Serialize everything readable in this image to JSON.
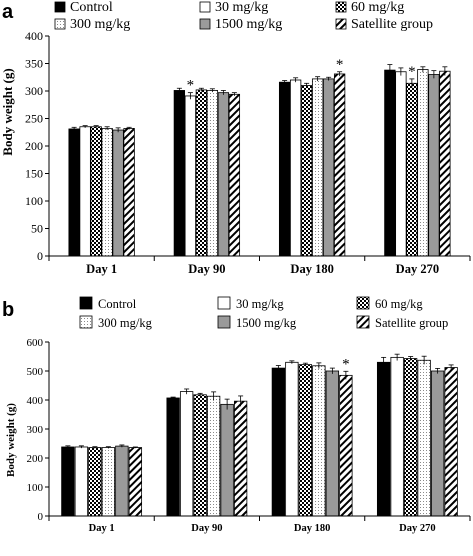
{
  "chart_data": [
    {
      "panel": "a",
      "type": "bar",
      "categories": [
        "Day 1",
        "Day 90",
        "Day 180",
        "Day 270"
      ],
      "ylabel": "Body weight (g)",
      "ylim": [
        0,
        400
      ],
      "yticks": [
        0,
        50,
        100,
        150,
        200,
        250,
        300,
        350,
        400
      ],
      "legend_position": "top",
      "series": [
        {
          "name": "Control",
          "pattern": "solid-black",
          "values": [
            231,
            301,
            316,
            338
          ],
          "errors": [
            3,
            4,
            3,
            10
          ],
          "significant": [
            false,
            false,
            false,
            false
          ]
        },
        {
          "name": "30 mg/kg",
          "pattern": "white",
          "values": [
            235,
            291,
            320,
            335
          ],
          "errors": [
            2,
            6,
            4,
            7
          ],
          "significant": [
            false,
            true,
            false,
            false
          ]
        },
        {
          "name": "60 mg/kg",
          "pattern": "checker",
          "values": [
            235,
            302,
            310,
            314
          ],
          "errors": [
            2,
            3,
            4,
            8
          ],
          "significant": [
            false,
            false,
            false,
            true
          ]
        },
        {
          "name": "300 mg/kg",
          "pattern": "dots-light",
          "values": [
            232,
            301,
            322,
            339
          ],
          "errors": [
            3,
            3,
            4,
            5
          ],
          "significant": [
            false,
            false,
            false,
            false
          ]
        },
        {
          "name": "1500 mg/kg",
          "pattern": "gray",
          "values": [
            229,
            297,
            322,
            330
          ],
          "errors": [
            4,
            4,
            3,
            7
          ],
          "significant": [
            false,
            false,
            false,
            false
          ]
        },
        {
          "name": "Satellite group",
          "pattern": "diagonal",
          "values": [
            232,
            294,
            331,
            336
          ],
          "errors": [
            2,
            3,
            4,
            8
          ],
          "significant": [
            false,
            false,
            true,
            false
          ]
        }
      ]
    },
    {
      "panel": "b",
      "type": "bar",
      "categories": [
        "Day 1",
        "Day 90",
        "Day 180",
        "Day 270"
      ],
      "ylabel": "Body weight (g)",
      "ylim": [
        0,
        600
      ],
      "yticks": [
        0,
        100,
        200,
        300,
        400,
        500,
        600
      ],
      "legend_position": "top",
      "series": [
        {
          "name": "Control",
          "pattern": "solid-black",
          "values": [
            238,
            407,
            510,
            530
          ],
          "errors": [
            4,
            3,
            9,
            17
          ],
          "significant": [
            false,
            false,
            false,
            false
          ]
        },
        {
          "name": "30 mg/kg",
          "pattern": "white",
          "values": [
            238,
            429,
            530,
            547
          ],
          "errors": [
            4,
            9,
            5,
            11
          ],
          "significant": [
            false,
            false,
            false,
            false
          ]
        },
        {
          "name": "60 mg/kg",
          "pattern": "checker",
          "values": [
            236,
            418,
            522,
            543
          ],
          "errors": [
            3,
            5,
            5,
            7
          ],
          "significant": [
            false,
            false,
            false,
            false
          ]
        },
        {
          "name": "300 mg/kg",
          "pattern": "dots-light",
          "values": [
            236,
            413,
            518,
            537
          ],
          "errors": [
            3,
            15,
            10,
            14
          ],
          "significant": [
            false,
            false,
            false,
            false
          ]
        },
        {
          "name": "1500 mg/kg",
          "pattern": "gray",
          "values": [
            241,
            385,
            500,
            500
          ],
          "errors": [
            4,
            18,
            10,
            9
          ],
          "significant": [
            false,
            false,
            false,
            false
          ]
        },
        {
          "name": "Satellite group",
          "pattern": "diagonal",
          "values": [
            236,
            396,
            485,
            512
          ],
          "errors": [
            2,
            18,
            14,
            9
          ],
          "significant": [
            false,
            false,
            true,
            false
          ]
        }
      ]
    }
  ],
  "panels": [
    {
      "letter": "a"
    },
    {
      "letter": "b"
    }
  ],
  "significance_marker": "*"
}
